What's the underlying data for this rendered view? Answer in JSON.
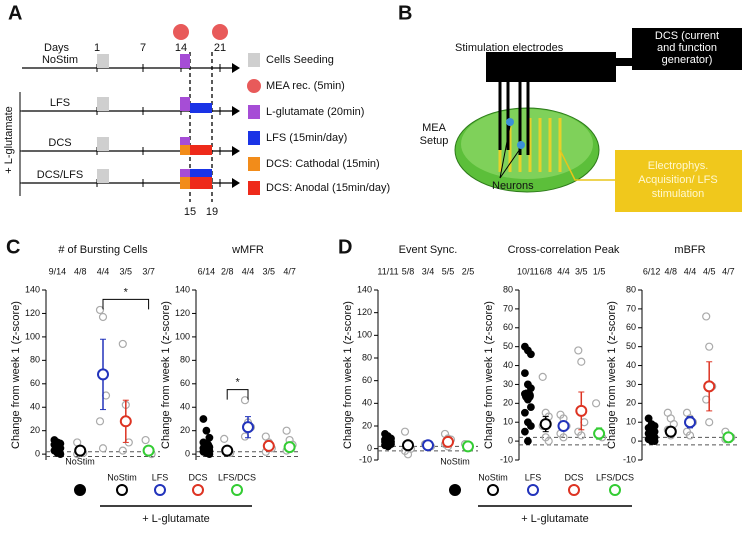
{
  "panel_a": {
    "letter": "A",
    "days_label": "Days",
    "days": [
      1,
      7,
      14,
      21
    ],
    "markers": [
      15,
      19
    ],
    "side_label": "+ L-glutamate",
    "rows": [
      "NoStim",
      "LFS",
      "DCS",
      "DCS/LFS"
    ],
    "legend": [
      "Cells Seeding",
      "MEA rec. (5min)",
      "L-glutamate (20min)",
      "LFS (15min/day)",
      "DCS: Cathodal (15min)",
      "DCS: Anodal (15min/day)"
    ]
  },
  "panel_b": {
    "letter": "B",
    "electrodes": "Stimulation electrodes",
    "generator": [
      "DCS (current",
      "and function",
      "generator)"
    ],
    "setup": [
      "MEA",
      "Setup"
    ],
    "neurons": "Neurons",
    "acquisition": [
      "Electrophys.",
      "Acquisition/ LFS",
      "stimulation"
    ]
  },
  "panel_c": {
    "letter": "C"
  },
  "panel_d": {
    "letter": "D"
  },
  "legend_c": {
    "names": [
      "NoStim",
      "NoStim",
      "LFS",
      "DCS",
      "LFS/DCS"
    ],
    "group": "+ L-glutamate"
  },
  "legend_d": {
    "names": [
      "NoStim",
      "NoStim",
      "LFS",
      "DCS",
      "LFS/DCS"
    ],
    "group": "+ L-glutamate"
  },
  "chart_data": [
    {
      "type": "dot",
      "title": "# of Bursting Cells",
      "ylabel": "Change from week 1 (z-score)",
      "counts": [
        "9/14",
        "4/8",
        "4/4",
        "3/5",
        "3/7"
      ],
      "ylim": [
        -5,
        140
      ],
      "yticks": [
        0,
        20,
        40,
        60,
        80,
        100,
        120,
        140
      ],
      "threshold_lines": [
        -2,
        2
      ],
      "series": [
        {
          "color": "#000000",
          "filled": true,
          "values": [
            12,
            10,
            9,
            8,
            6,
            5,
            3,
            1,
            0
          ],
          "mean": 8,
          "error": 2
        },
        {
          "color": "#000000",
          "filled": false,
          "values": [
            10,
            2,
            1,
            0
          ],
          "mean": 3,
          "error": 1
        },
        {
          "color": "#2233bb",
          "filled": false,
          "values": [
            123,
            117,
            50,
            28,
            5
          ],
          "mean": 68,
          "error": 30
        },
        {
          "color": "#dd3322",
          "filled": false,
          "values": [
            94,
            42,
            10,
            3
          ],
          "mean": 28,
          "error": 18
        },
        {
          "color": "#33cc33",
          "filled": false,
          "values": [
            12,
            3,
            0
          ],
          "mean": 3,
          "error": 1
        }
      ],
      "annotations": [
        {
          "text": "*",
          "from": 2,
          "to": 4,
          "y": 132
        }
      ]
    },
    {
      "type": "dot",
      "title": "wMFR",
      "ylabel": "Change from week 1 (z-score)",
      "counts": [
        "6/14",
        "2/8",
        "4/4",
        "3/5",
        "4/7"
      ],
      "ylim": [
        -5,
        140
      ],
      "yticks": [
        0,
        20,
        40,
        60,
        80,
        100,
        120,
        140
      ],
      "threshold_lines": [
        -2,
        2
      ],
      "series": [
        {
          "color": "#000000",
          "filled": true,
          "values": [
            30,
            20,
            14,
            10,
            8,
            6,
            5,
            4,
            3,
            2,
            1,
            0
          ],
          "mean": 7,
          "error": 2
        },
        {
          "color": "#000000",
          "filled": false,
          "values": [
            13,
            3,
            1
          ],
          "mean": 3,
          "error": 1
        },
        {
          "color": "#2233bb",
          "filled": false,
          "values": [
            46,
            27,
            23,
            15
          ],
          "mean": 23,
          "error": 9
        },
        {
          "color": "#dd3322",
          "filled": false,
          "values": [
            15,
            10,
            5,
            2
          ],
          "mean": 7,
          "error": 2
        },
        {
          "color": "#33cc33",
          "filled": false,
          "values": [
            20,
            12,
            8,
            3
          ],
          "mean": 6,
          "error": 3
        }
      ],
      "annotations": [
        {
          "text": "*",
          "from": 1,
          "to": 2,
          "y": 55
        }
      ]
    },
    {
      "type": "dot",
      "title": "Event Sync.",
      "ylabel": "Change from week 1 (z-score)",
      "counts": [
        "11/11",
        "5/8",
        "3/4",
        "5/5",
        "2/5"
      ],
      "ylim": [
        -10,
        140
      ],
      "yticks": [
        -10,
        0,
        20,
        40,
        60,
        80,
        100,
        120,
        140
      ],
      "threshold_lines": [
        -2,
        2
      ],
      "series": [
        {
          "color": "#000000",
          "filled": true,
          "values": [
            13,
            11,
            9,
            8,
            7,
            6,
            6,
            5,
            4,
            3,
            2
          ],
          "mean": 5,
          "error": 1
        },
        {
          "color": "#000000",
          "filled": false,
          "values": [
            15,
            5,
            0,
            -2,
            -5
          ],
          "mean": 3,
          "error": 3
        },
        {
          "color": "#2233bb",
          "filled": false,
          "values": [
            4,
            3,
            2
          ],
          "mean": 3,
          "error": 1
        },
        {
          "color": "#dd3322",
          "filled": false,
          "values": [
            13,
            9,
            8,
            4,
            2
          ],
          "mean": 6,
          "error": 2
        },
        {
          "color": "#33cc33",
          "filled": false,
          "values": [
            4,
            1
          ],
          "mean": 2,
          "error": 1
        }
      ],
      "annotations": []
    },
    {
      "type": "dot",
      "title": "Cross-correlation Peak",
      "ylabel": "Change from week 1 (z-score)",
      "counts": [
        "10/11",
        "6/8",
        "4/4",
        "3/5",
        "1/5"
      ],
      "ylim": [
        -10,
        80
      ],
      "yticks": [
        -10,
        0,
        10,
        20,
        30,
        40,
        50,
        60,
        70,
        80
      ],
      "threshold_lines": [
        -2,
        2
      ],
      "series": [
        {
          "color": "#000000",
          "filled": true,
          "values": [
            50,
            48,
            46,
            36,
            30,
            28,
            25,
            22,
            18,
            15,
            10,
            8,
            5,
            0
          ],
          "mean": 24,
          "error": 3
        },
        {
          "color": "#000000",
          "filled": false,
          "values": [
            34,
            15,
            13,
            8,
            2,
            0
          ],
          "mean": 9,
          "error": 4
        },
        {
          "color": "#2233bb",
          "filled": false,
          "values": [
            14,
            12,
            8,
            4,
            2
          ],
          "mean": 8,
          "error": 2
        },
        {
          "color": "#dd3322",
          "filled": false,
          "values": [
            48,
            42,
            10,
            5,
            3
          ],
          "mean": 16,
          "error": 10
        },
        {
          "color": "#33cc33",
          "filled": false,
          "values": [
            20,
            4,
            2
          ],
          "mean": 4,
          "error": 3
        }
      ],
      "annotations": []
    },
    {
      "type": "dot",
      "title": "mBFR",
      "ylabel": "Change from week 1 (z-score)",
      "counts": [
        "6/12",
        "4/8",
        "4/4",
        "4/5",
        "4/7"
      ],
      "ylim": [
        -10,
        80
      ],
      "yticks": [
        -10,
        0,
        10,
        20,
        30,
        40,
        50,
        60,
        70,
        80
      ],
      "threshold_lines": [
        -2,
        2
      ],
      "series": [
        {
          "color": "#000000",
          "filled": true,
          "values": [
            12,
            9,
            8,
            7,
            6,
            5,
            4,
            3,
            2,
            1,
            0,
            0
          ],
          "mean": 4,
          "error": 1
        },
        {
          "color": "#000000",
          "filled": false,
          "values": [
            15,
            12,
            9,
            6,
            3
          ],
          "mean": 5,
          "error": 1.5
        },
        {
          "color": "#2233bb",
          "filled": false,
          "values": [
            15,
            12,
            10,
            5,
            3
          ],
          "mean": 10,
          "error": 3
        },
        {
          "color": "#dd3322",
          "filled": false,
          "values": [
            66,
            50,
            29,
            22,
            10
          ],
          "mean": 29,
          "error": 13
        },
        {
          "color": "#33cc33",
          "filled": false,
          "values": [
            5,
            3,
            2,
            1
          ],
          "mean": 2,
          "error": 1
        }
      ],
      "annotations": []
    }
  ]
}
